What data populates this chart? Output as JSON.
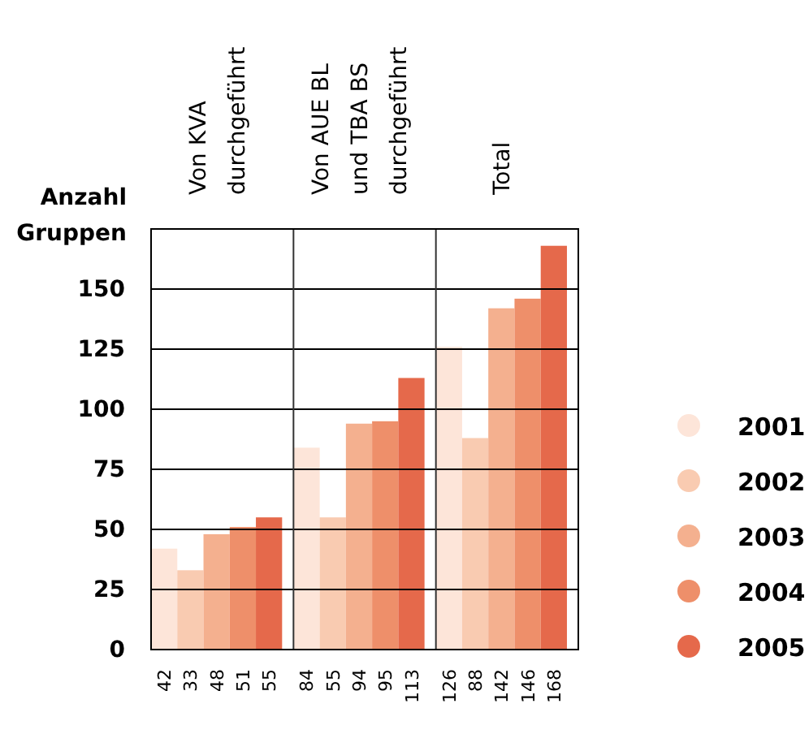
{
  "chart_data": {
    "type": "bar",
    "ylabel": "Anzahl Gruppen",
    "categories": [
      "Von KVA durchgeführt",
      "Von AUE BL und TBA BS durchgeführt",
      "Total"
    ],
    "series": [
      {
        "name": "2001",
        "color": "#fde5d9",
        "values": [
          42,
          84,
          126
        ]
      },
      {
        "name": "2002",
        "color": "#f9cbb1",
        "values": [
          33,
          55,
          88
        ]
      },
      {
        "name": "2003",
        "color": "#f4b08f",
        "values": [
          48,
          94,
          142
        ]
      },
      {
        "name": "2004",
        "color": "#ee8f6a",
        "values": [
          51,
          95,
          146
        ]
      },
      {
        "name": "2005",
        "color": "#e5694b",
        "values": [
          55,
          113,
          168
        ]
      }
    ],
    "ylim": [
      0,
      175
    ],
    "yticks": [
      0,
      25,
      50,
      75,
      100,
      125,
      150
    ],
    "grid": "y",
    "legend": "right",
    "data_labels": true
  }
}
